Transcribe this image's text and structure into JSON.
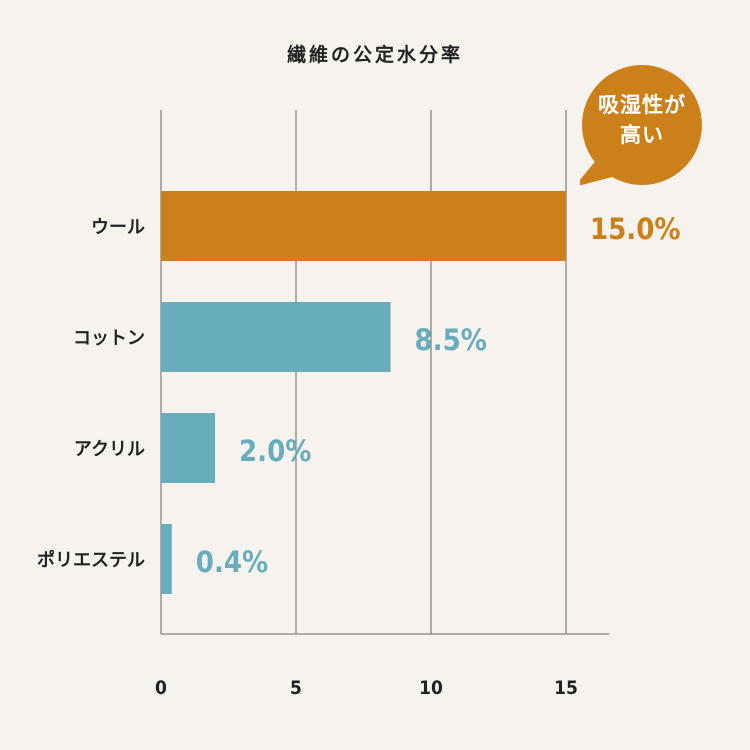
{
  "chart_data": {
    "type": "bar",
    "orientation": "horizontal",
    "title": "繊維の公定水分率",
    "categories": [
      "ウール",
      "コットン",
      "アクリル",
      "ポリエステル"
    ],
    "values": [
      15.0,
      8.5,
      2.0,
      0.4
    ],
    "value_labels": [
      "15.0%",
      "8.5%",
      "2.0%",
      "0.4%"
    ],
    "x_ticks": [
      "0",
      "5",
      "10",
      "15"
    ],
    "xlim": [
      0,
      16.6
    ],
    "grid": "vertical",
    "highlight_index": 0,
    "annotation": {
      "line1": "吸湿性が",
      "line2": "高い"
    },
    "colors": {
      "highlight": "#cc8019",
      "bar": "#67adbb",
      "grid": "#666666",
      "text": "#222222",
      "background": "#f6f3ee"
    }
  }
}
